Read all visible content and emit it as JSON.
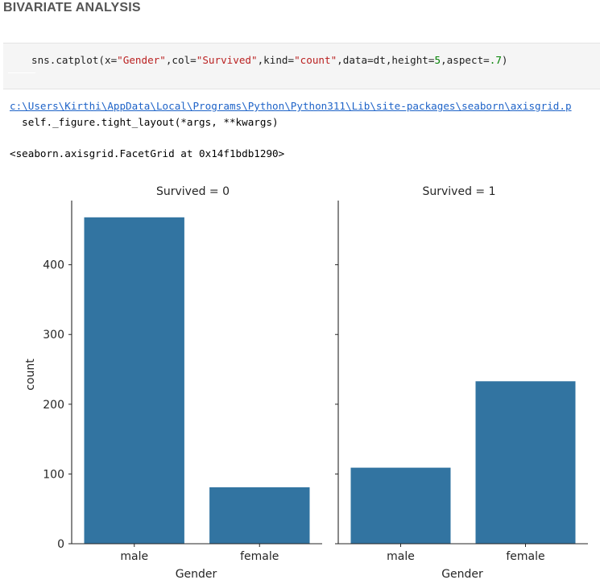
{
  "heading": "BIVARIATE ANALYSIS",
  "code": {
    "p1": "sns.catplot(x=",
    "s1": "\"Gender\"",
    "p2": ",col=",
    "s2": "\"Survived\"",
    "p3": ",kind=",
    "s3": "\"count\"",
    "p4": ",data=dt,height=",
    "n1": "5",
    "p5": ",aspect=",
    "n2": ".7",
    "p6": ")"
  },
  "output": {
    "warning_path": "c:\\Users\\Kirthi\\AppData\\Local\\Programs\\Python\\Python311\\Lib\\site-packages\\seaborn\\axisgrid.p",
    "warning_line": "  self._figure.tight_layout(*args, **kwargs)",
    "repr": "<seaborn.axisgrid.FacetGrid at 0x14f1bdb1290>"
  },
  "colors": {
    "bar": "#3274a1",
    "axis": "#262626"
  },
  "chart_data": {
    "type": "bar",
    "ylabel": "count",
    "ylim": [
      0,
      492
    ],
    "yticks": [
      0,
      100,
      200,
      300,
      400
    ],
    "facets": [
      {
        "title": "Survived = 0",
        "xlabel": "Gender",
        "categories": [
          "male",
          "female"
        ],
        "values": [
          468,
          81
        ]
      },
      {
        "title": "Survived = 1",
        "xlabel": "Gender",
        "categories": [
          "male",
          "female"
        ],
        "values": [
          109,
          233
        ]
      }
    ]
  }
}
